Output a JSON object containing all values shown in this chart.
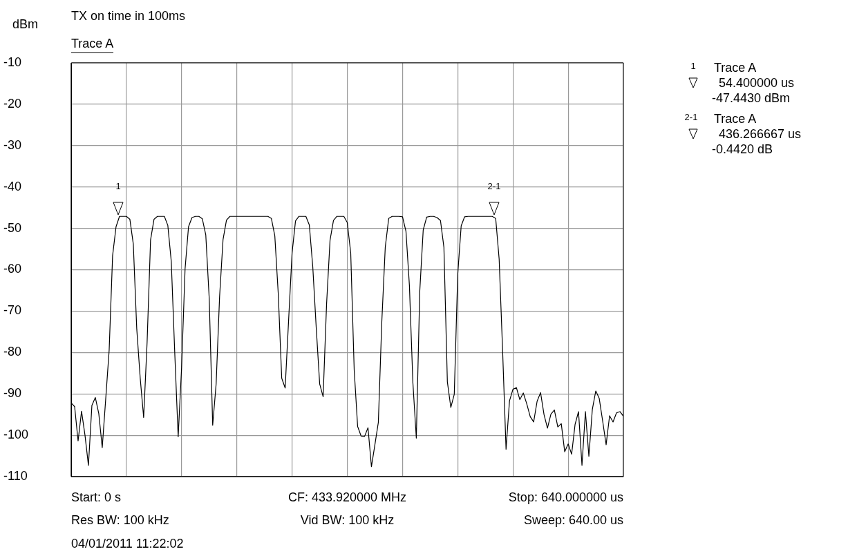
{
  "chart_data": {
    "type": "line",
    "title": "TX on time in 100ms",
    "subtitle": "Trace A",
    "ylabel": "dBm",
    "categories": [
      null,
      null,
      null,
      null,
      null,
      null,
      null,
      null,
      null,
      null,
      null,
      null,
      null,
      null,
      null,
      null,
      null,
      null,
      null,
      null,
      null,
      null,
      null,
      null,
      null,
      null,
      null,
      null,
      null,
      null,
      null,
      null,
      null,
      null,
      null,
      null,
      null,
      null,
      null,
      null,
      null,
      null,
      null,
      null,
      null,
      null,
      null,
      null,
      null,
      null,
      null,
      null,
      null,
      null,
      null,
      null,
      null,
      null,
      null,
      null,
      null,
      null,
      null,
      null,
      null,
      null,
      null,
      null,
      null,
      null,
      null,
      null,
      null,
      null,
      null,
      null,
      null,
      null,
      null,
      null,
      null,
      null,
      null,
      null,
      null,
      null,
      null,
      null,
      null,
      null,
      null,
      null,
      null,
      null,
      null,
      null,
      null,
      null,
      null,
      null,
      null,
      null,
      null,
      null,
      null,
      null,
      null,
      null,
      null,
      null,
      null,
      null,
      null,
      null,
      null,
      null,
      null,
      null,
      null,
      null,
      null,
      null,
      null,
      null,
      null,
      null,
      null,
      null,
      null,
      null,
      null,
      null,
      null,
      null,
      null,
      null,
      null,
      null,
      null,
      null,
      null,
      null,
      null,
      null,
      null,
      null,
      null,
      null,
      null,
      null,
      null,
      null,
      null,
      null,
      null,
      null,
      null,
      null,
      null,
      null,
      null
    ],
    "ylim": [
      -110,
      -10
    ],
    "yticks": [
      -10,
      -20,
      -30,
      -40,
      -50,
      -60,
      -70,
      -80,
      -90,
      -100,
      -110
    ],
    "grid": true,
    "tick_labels": "y",
    "series": [
      {
        "color": "#000000",
        "values": [
          -92.2,
          -93.1,
          -101.4,
          -94.2,
          -100,
          -107.3,
          -92.8,
          -90.9,
          -94.8,
          -103,
          -91.3,
          -79.5,
          -56.6,
          -49.6,
          -47.1,
          -47.1,
          -47.1,
          -47.8,
          -53.8,
          -74.3,
          -86.2,
          -95.7,
          -77.5,
          -52.8,
          -47.8,
          -47.1,
          -47.1,
          -47.1,
          -49.3,
          -58,
          -79.9,
          -100.4,
          -83.5,
          -59.8,
          -49.6,
          -47.4,
          -47.1,
          -47.1,
          -47.7,
          -51.6,
          -67,
          -97.6,
          -87.6,
          -66.5,
          -52.7,
          -48,
          -47.1,
          -47.1,
          -47.1,
          -47.1,
          -47.1,
          -47.1,
          -47.1,
          -47.1,
          -47.1,
          -47.1,
          -47.1,
          -47.1,
          -47.6,
          -51.8,
          -65.8,
          -86.2,
          -88.6,
          -72.2,
          -56,
          -48.2,
          -47.1,
          -47.1,
          -47.1,
          -49.2,
          -59.3,
          -74,
          -87.6,
          -90.7,
          -68.3,
          -52.9,
          -48.1,
          -47.1,
          -47.1,
          -47.1,
          -48.6,
          -56,
          -84.2,
          -97.9,
          -100.2,
          -100.3,
          -98.2,
          -107.6,
          -102.3,
          -96.9,
          -72.6,
          -54.6,
          -47.6,
          -47.1,
          -47.1,
          -47.1,
          -47.2,
          -50.7,
          -63.8,
          -87.2,
          -100.7,
          -65.2,
          -50.4,
          -47.3,
          -47.1,
          -47.1,
          -47.4,
          -48.1,
          -54.6,
          -87.1,
          -93.3,
          -90.1,
          -61.1,
          -49.4,
          -47.2,
          -47.1,
          -47.1,
          -47.1,
          -47.1,
          -47.1,
          -47.1,
          -47.1,
          -47.1,
          -47.6,
          -57.4,
          -79.4,
          -103.4,
          -91.7,
          -88.9,
          -88.5,
          -91.4,
          -89.8,
          -92.4,
          -95.5,
          -96.8,
          -91.8,
          -89.7,
          -95,
          -98.3,
          -94.9,
          -93.9,
          -98,
          -97.2,
          -104,
          -102.1,
          -104.6,
          -97.4,
          -94.3,
          -107.3,
          -94.3,
          -105.1,
          -93.8,
          -89.3,
          -91.1,
          -96.6,
          -102.3,
          -95.3,
          -96.8,
          -94.6,
          -94.3,
          -95.4
        ]
      }
    ],
    "annotations": [
      "1",
      "2-1",
      "1",
      "Trace A",
      "54.400000 us",
      "-47.4430 dBm",
      "2-1",
      "Trace A",
      "436.266667 us",
      "-0.4420 dB",
      "Start: 0 s",
      "CF: 433.920000 MHz",
      "Stop: 640.000000 us",
      "Res BW: 100 kHz",
      "Vid BW: 100 kHz",
      "Sweep: 640.00 us",
      "04/01/2011 11:22:02"
    ]
  }
}
